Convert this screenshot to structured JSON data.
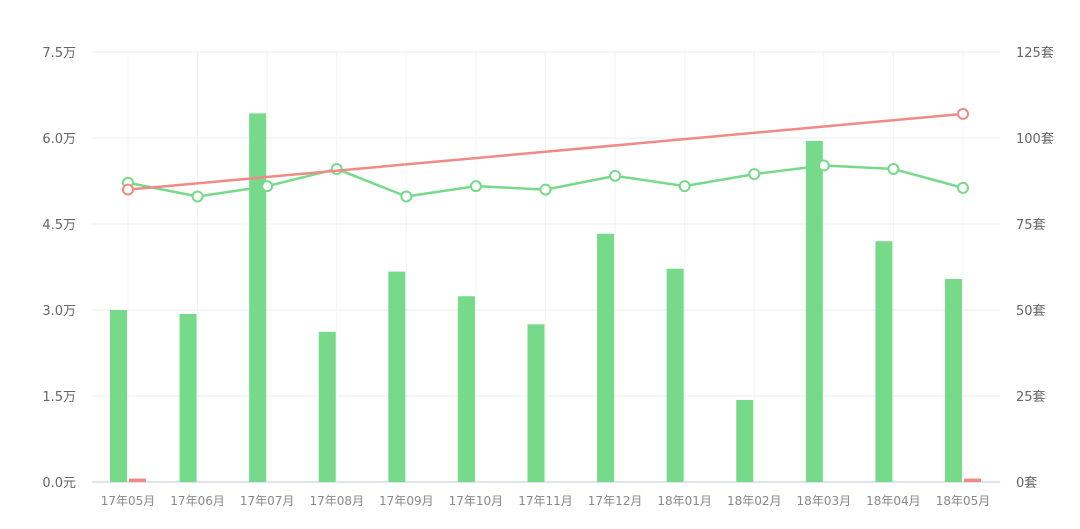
{
  "chart_data": {
    "type": "bar",
    "categories": [
      "17年05月",
      "17年06月",
      "17年07月",
      "17年08月",
      "17年09月",
      "17年10月",
      "17年11月",
      "17年12月",
      "18年01月",
      "18年02月",
      "18年03月",
      "18年04月",
      "18年05月"
    ],
    "y_left": {
      "ticks": [
        "0.0元",
        "1.5万",
        "3.0万",
        "4.5万",
        "6.0万",
        "7.5万"
      ],
      "ylim": [
        0,
        75000
      ]
    },
    "y_right": {
      "ticks": [
        "0套",
        "25套",
        "50套",
        "75套",
        "100套",
        "125套"
      ],
      "ylim": [
        0,
        125
      ]
    },
    "series": [
      {
        "kind": "bar",
        "axis": "left",
        "color": "#77d98a",
        "values": [
          30000,
          29300,
          64300,
          26200,
          36700,
          32400,
          27500,
          43300,
          37200,
          14300,
          59500,
          42000,
          35400
        ]
      },
      {
        "kind": "bar",
        "axis": "right",
        "color": "#f08a85",
        "values": [
          1,
          0,
          0,
          0,
          0,
          0,
          0,
          0,
          0,
          0,
          0,
          0,
          1
        ]
      },
      {
        "kind": "line",
        "axis": "right",
        "color": "#77d98a",
        "values": [
          87,
          83,
          86,
          91,
          83,
          86,
          85,
          89,
          86,
          89.5,
          92,
          91,
          85.5
        ]
      },
      {
        "kind": "line",
        "axis": "right",
        "color": "#f08a85",
        "points": [
          [
            0,
            85
          ],
          [
            12,
            107
          ]
        ]
      }
    ],
    "grid": true
  }
}
